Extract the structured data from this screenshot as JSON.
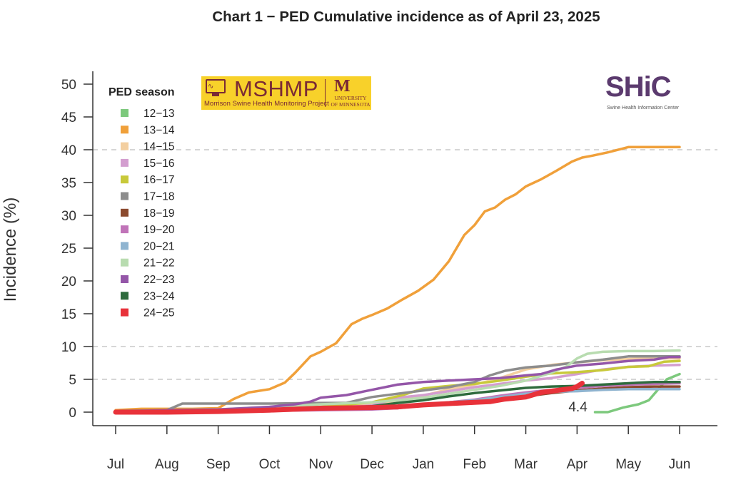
{
  "title": "Chart 1 − PED Cumulative incidence as of April 23, 2025",
  "logos": {
    "mshmp": {
      "name": "MSHMP",
      "subtitle": "Morrison Swine Health Monitoring Project",
      "university_line1": "UNIVERSITY",
      "university_line2": "OF MINNESOTA",
      "color": "#7a2a35",
      "background": "#f8d12a"
    },
    "shic": {
      "name": "SHiC",
      "subtitle": "Swine Health Information Center",
      "color": "#5b3a6e"
    }
  },
  "chart_data": {
    "type": "line",
    "title": "Chart 1 − PED Cumulative incidence as of April 23, 2025",
    "xlabel": "",
    "ylabel": "Incidence (%)",
    "ylim": [
      0,
      50
    ],
    "yticks": [
      0,
      5,
      10,
      15,
      20,
      25,
      30,
      35,
      40,
      45,
      50
    ],
    "x_categories": [
      "Jul",
      "Aug",
      "Sep",
      "Oct",
      "Nov",
      "Dec",
      "Jan",
      "Feb",
      "Mar",
      "Apr",
      "May",
      "Jun"
    ],
    "xlim_months": [
      0,
      11
    ],
    "gridlines_y": [
      5,
      10,
      40
    ],
    "legend": {
      "title": "PED season",
      "placement": "top-left"
    },
    "annotations": [
      {
        "text": "4.4",
        "x": 9.0,
        "y": 0.2
      }
    ],
    "series": [
      {
        "name": "12−13",
        "color": "#7dc97d",
        "x": [
          9.35,
          9.6,
          9.9,
          10.2,
          10.4,
          10.75,
          11.0
        ],
        "y": [
          0.0,
          0.0,
          0.7,
          1.2,
          1.8,
          5.0,
          5.8
        ]
      },
      {
        "name": "13−14",
        "color": "#f0a03a",
        "x": [
          0.0,
          0.5,
          1.0,
          1.5,
          2.0,
          2.3,
          2.6,
          3.0,
          3.3,
          3.5,
          3.8,
          4.0,
          4.3,
          4.6,
          4.8,
          5.0,
          5.3,
          5.6,
          5.9,
          6.2,
          6.5,
          6.8,
          7.0,
          7.2,
          7.4,
          7.6,
          7.8,
          8.0,
          8.3,
          8.6,
          8.9,
          9.1,
          9.3,
          9.6,
          9.9,
          10.0,
          10.3,
          10.6,
          11.0
        ],
        "y": [
          0.3,
          0.5,
          0.5,
          0.5,
          0.6,
          2.0,
          3.0,
          3.5,
          4.5,
          6.0,
          8.5,
          9.2,
          10.5,
          13.4,
          14.2,
          14.8,
          15.8,
          17.2,
          18.5,
          20.2,
          23.0,
          27.0,
          28.5,
          30.6,
          31.2,
          32.4,
          33.2,
          34.4,
          35.5,
          36.8,
          38.2,
          38.8,
          39.1,
          39.6,
          40.2,
          40.4,
          40.4,
          40.4,
          40.4
        ]
      },
      {
        "name": "14−15",
        "color": "#f3cfa0",
        "x": [
          0.0,
          1.0,
          2.0,
          3.0,
          4.0,
          5.0,
          5.5,
          6.0,
          6.5,
          7.0,
          7.5,
          8.0,
          8.5,
          9.0,
          9.5,
          10.0,
          10.5,
          11.0
        ],
        "y": [
          0.1,
          0.2,
          0.3,
          0.5,
          0.8,
          1.2,
          1.8,
          2.5,
          3.5,
          4.2,
          5.2,
          6.5,
          7.2,
          7.6,
          7.9,
          8.1,
          8.2,
          8.2
        ]
      },
      {
        "name": "15−16",
        "color": "#d39ecf",
        "x": [
          0.0,
          1.0,
          2.0,
          3.0,
          4.0,
          5.0,
          5.5,
          6.0,
          6.5,
          7.0,
          7.5,
          8.0,
          8.5,
          9.0,
          9.5,
          10.0,
          10.5,
          11.0
        ],
        "y": [
          0.0,
          0.1,
          0.2,
          0.4,
          0.6,
          1.0,
          2.2,
          2.6,
          3.2,
          3.8,
          4.3,
          4.8,
          5.2,
          5.8,
          6.5,
          6.9,
          7.1,
          7.2
        ]
      },
      {
        "name": "16−17",
        "color": "#c8c93a",
        "x": [
          0.0,
          1.0,
          2.0,
          3.0,
          4.0,
          5.0,
          5.6,
          6.0,
          6.5,
          7.0,
          7.5,
          8.0,
          8.5,
          9.0,
          9.5,
          10.0,
          10.4,
          10.7,
          11.0
        ],
        "y": [
          0.1,
          0.2,
          0.3,
          0.5,
          0.8,
          1.5,
          2.6,
          3.6,
          4.0,
          4.3,
          4.8,
          5.4,
          5.9,
          6.1,
          6.4,
          6.9,
          7.0,
          7.7,
          7.8
        ]
      },
      {
        "name": "17−18",
        "color": "#8d8d8d",
        "x": [
          0.0,
          1.0,
          1.3,
          2.0,
          3.0,
          4.0,
          4.5,
          5.0,
          5.5,
          6.0,
          6.5,
          7.0,
          7.3,
          7.6,
          8.0,
          8.5,
          9.0,
          9.5,
          10.0,
          10.5,
          11.0
        ],
        "y": [
          0.2,
          0.3,
          1.3,
          1.3,
          1.3,
          1.4,
          1.4,
          2.3,
          2.8,
          3.3,
          3.8,
          4.6,
          5.6,
          6.3,
          6.8,
          7.1,
          7.6,
          8.0,
          8.5,
          8.5,
          8.5
        ]
      },
      {
        "name": "18−19",
        "color": "#8b4a2e",
        "x": [
          0.0,
          1.0,
          2.0,
          3.0,
          4.0,
          5.0,
          5.5,
          6.0,
          6.5,
          7.0,
          7.5,
          8.0,
          8.5,
          9.0,
          9.5,
          10.0,
          10.5,
          11.0
        ],
        "y": [
          0.0,
          0.1,
          0.2,
          0.3,
          0.5,
          0.5,
          0.6,
          1.2,
          1.4,
          1.7,
          2.0,
          2.4,
          2.9,
          3.3,
          3.6,
          3.8,
          3.9,
          3.9
        ]
      },
      {
        "name": "19−20",
        "color": "#c074b8",
        "x": [
          0.0,
          1.0,
          2.0,
          3.0,
          4.0,
          5.0,
          5.5,
          6.0,
          6.5,
          7.0,
          7.5,
          8.0,
          8.5,
          9.0,
          9.5,
          10.0,
          10.5,
          11.0
        ],
        "y": [
          0.0,
          0.0,
          0.1,
          0.2,
          0.3,
          0.4,
          0.6,
          1.0,
          1.5,
          1.9,
          2.5,
          3.0,
          3.4,
          3.7,
          4.0,
          4.2,
          4.3,
          4.4
        ]
      },
      {
        "name": "20−21",
        "color": "#8fb4d0",
        "x": [
          0.0,
          1.0,
          2.0,
          3.0,
          4.0,
          5.0,
          5.5,
          6.0,
          6.5,
          7.0,
          7.5,
          8.0,
          8.5,
          9.0,
          9.5,
          10.0,
          10.5,
          11.0
        ],
        "y": [
          0.0,
          0.1,
          0.2,
          0.3,
          0.5,
          0.7,
          0.8,
          1.2,
          1.5,
          1.8,
          2.3,
          2.8,
          3.1,
          3.2,
          3.4,
          3.5,
          3.5,
          3.5
        ]
      },
      {
        "name": "21−22",
        "color": "#b8dcb0",
        "x": [
          0.0,
          1.0,
          2.0,
          3.0,
          4.0,
          5.0,
          5.5,
          6.0,
          6.5,
          7.0,
          7.5,
          8.0,
          8.5,
          8.8,
          9.0,
          9.2,
          9.5,
          10.0,
          10.5,
          11.0
        ],
        "y": [
          0.1,
          0.2,
          0.4,
          0.8,
          1.2,
          1.5,
          1.8,
          2.2,
          2.8,
          3.4,
          4.0,
          4.8,
          6.0,
          7.0,
          8.2,
          8.9,
          9.2,
          9.3,
          9.3,
          9.4
        ]
      },
      {
        "name": "22−23",
        "color": "#9456a8",
        "x": [
          0.0,
          1.0,
          2.0,
          2.5,
          3.0,
          3.5,
          3.8,
          4.0,
          4.5,
          5.0,
          5.5,
          6.0,
          6.5,
          7.0,
          7.5,
          8.0,
          8.3,
          8.6,
          9.0,
          9.5,
          10.0,
          10.5,
          10.8,
          11.0
        ],
        "y": [
          0.1,
          0.3,
          0.4,
          0.6,
          0.8,
          1.2,
          1.6,
          2.2,
          2.6,
          3.4,
          4.2,
          4.6,
          4.8,
          5.0,
          5.2,
          5.6,
          5.8,
          6.5,
          7.1,
          7.4,
          7.8,
          8.0,
          8.4,
          8.4
        ]
      },
      {
        "name": "23−24",
        "color": "#2e6b3d",
        "x": [
          0.0,
          1.0,
          2.0,
          3.0,
          4.0,
          5.0,
          5.5,
          6.0,
          6.5,
          7.0,
          7.5,
          8.0,
          8.5,
          9.0,
          9.5,
          10.0,
          10.5,
          11.0
        ],
        "y": [
          0.0,
          0.1,
          0.2,
          0.4,
          0.6,
          0.9,
          1.4,
          1.8,
          2.4,
          2.9,
          3.3,
          3.7,
          3.9,
          4.0,
          4.2,
          4.4,
          4.6,
          4.6
        ]
      },
      {
        "name": "24−25",
        "color": "#e8323a",
        "x": [
          0.0,
          1.0,
          2.0,
          3.0,
          4.0,
          5.0,
          5.5,
          6.0,
          6.5,
          7.0,
          7.3,
          7.6,
          8.0,
          8.3,
          8.6,
          8.9,
          9.0,
          9.1
        ],
        "y": [
          0.0,
          0.0,
          0.1,
          0.3,
          0.6,
          0.7,
          0.8,
          1.1,
          1.3,
          1.5,
          1.6,
          2.0,
          2.3,
          3.0,
          3.3,
          3.6,
          3.9,
          4.4
        ]
      }
    ]
  }
}
